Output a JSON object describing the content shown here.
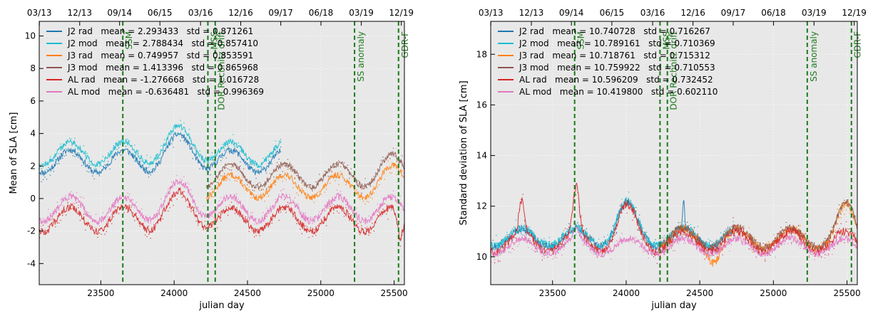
{
  "chart_data": [
    {
      "type": "line",
      "title": "",
      "xlabel": "julian day",
      "ylabel": "Mean of SLA [cm]",
      "xlim": [
        23080,
        25570
      ],
      "ylim": [
        -5.3,
        10.9
      ],
      "x_ticks": [
        23500,
        24000,
        24500,
        25000,
        25500
      ],
      "y_ticks": [
        -4,
        -2,
        0,
        2,
        4,
        6,
        8,
        10
      ],
      "top_ticks": [
        {
          "x": 23081,
          "label": "03/13"
        },
        {
          "x": 23356,
          "label": "12/13"
        },
        {
          "x": 23628,
          "label": "09/14"
        },
        {
          "x": 23903,
          "label": "06/15"
        },
        {
          "x": 24180,
          "label": "03/16"
        },
        {
          "x": 24454,
          "label": "12/16"
        },
        {
          "x": 24727,
          "label": "09/17"
        },
        {
          "x": 25001,
          "label": "06/18"
        },
        {
          "x": 25276,
          "label": "03/19"
        },
        {
          "x": 25549,
          "label": "12/19"
        }
      ],
      "grid": true,
      "legend_position": "upper-left",
      "series": [
        {
          "name": "J2 rad",
          "legend": "J2 rad   mean = 2.293433   std = 0.871261",
          "color": "#1f77b4",
          "x_range": [
            23080,
            24730
          ],
          "mean": 2.293433,
          "std": 0.871261
        },
        {
          "name": "J2 mod",
          "legend": "J2 mod   mean = 2.788434   std = 0.857410",
          "color": "#17becf",
          "x_range": [
            23080,
            24730
          ],
          "mean": 2.788434,
          "std": 0.85741
        },
        {
          "name": "J3 rad",
          "legend": "J3 rad   mean = 0.749957   std = 0.853591",
          "color": "#ff7f0e",
          "x_range": [
            24220,
            25570
          ],
          "mean": 0.749957,
          "std": 0.853591
        },
        {
          "name": "J3 mod",
          "legend": "J3 mod   mean = 1.413396   std = 0.865968",
          "color": "#8c564b",
          "x_range": [
            24220,
            25570
          ],
          "mean": 1.413396,
          "std": 0.865968
        },
        {
          "name": "AL rad",
          "legend": "AL rad   mean = -1.276668   std = 1.016728",
          "color": "#d62728",
          "x_range": [
            23080,
            25570
          ],
          "mean": -1.276668,
          "std": 1.016728
        },
        {
          "name": "AL mod",
          "legend": "AL mod   mean = -0.636481   std = 0.996369",
          "color": "#e377c2",
          "x_range": [
            23080,
            25570
          ],
          "mean": -0.636481,
          "std": 0.996369
        }
      ],
      "annotations": [
        {
          "x": 23650,
          "label": "SSM"
        },
        {
          "x": 24230,
          "label": "MSS"
        },
        {
          "x": 24280,
          "label": "DOR Rechnitz drift"
        },
        {
          "x": 25230,
          "label": "SS anomaly"
        },
        {
          "x": 25530,
          "label": "GDR-F"
        }
      ]
    },
    {
      "type": "line",
      "title": "",
      "xlabel": "julian day",
      "ylabel": "Standard deviation of SLA [cm]",
      "xlim": [
        23080,
        25570
      ],
      "ylim": [
        8.9,
        19.3
      ],
      "x_ticks": [
        23500,
        24000,
        24500,
        25000,
        25500
      ],
      "y_ticks": [
        10,
        12,
        14,
        16,
        18
      ],
      "top_ticks": [
        {
          "x": 23081,
          "label": "03/13"
        },
        {
          "x": 23356,
          "label": "12/13"
        },
        {
          "x": 23628,
          "label": "09/14"
        },
        {
          "x": 23903,
          "label": "06/15"
        },
        {
          "x": 24180,
          "label": "03/16"
        },
        {
          "x": 24454,
          "label": "12/16"
        },
        {
          "x": 24727,
          "label": "09/17"
        },
        {
          "x": 25001,
          "label": "06/18"
        },
        {
          "x": 25276,
          "label": "03/19"
        },
        {
          "x": 25549,
          "label": "12/19"
        }
      ],
      "grid": true,
      "legend_position": "upper-left",
      "series": [
        {
          "name": "J2 rad",
          "legend": "J2 rad   mean = 10.740728   std = 0.716267",
          "color": "#1f77b4",
          "x_range": [
            23080,
            24730
          ],
          "mean": 10.740728,
          "std": 0.716267
        },
        {
          "name": "J2 mod",
          "legend": "J2 mod   mean = 10.789161   std = 0.710369",
          "color": "#17becf",
          "x_range": [
            23080,
            24730
          ],
          "mean": 10.789161,
          "std": 0.710369
        },
        {
          "name": "J3 rad",
          "legend": "J3 rad   mean = 10.718761   std = 0.715312",
          "color": "#ff7f0e",
          "x_range": [
            24220,
            25570
          ],
          "mean": 10.718761,
          "std": 0.715312
        },
        {
          "name": "J3 mod",
          "legend": "J3 mod   mean = 10.759922   std = 0.710553",
          "color": "#8c564b",
          "x_range": [
            24220,
            25570
          ],
          "mean": 10.759922,
          "std": 0.710553
        },
        {
          "name": "AL rad",
          "legend": "AL rad   mean = 10.596209   std = 0.732452",
          "color": "#d62728",
          "x_range": [
            23080,
            25570
          ],
          "mean": 10.596209,
          "std": 0.732452
        },
        {
          "name": "AL mod",
          "legend": "AL mod   mean = 10.419800   std = 0.602110",
          "color": "#e377c2",
          "x_range": [
            23080,
            25570
          ],
          "mean": 10.4198,
          "std": 0.60211
        }
      ],
      "annotations": [
        {
          "x": 23650,
          "label": "SSM"
        },
        {
          "x": 24230,
          "label": "MSS"
        },
        {
          "x": 24280,
          "label": "DOR Rechnitz drift"
        },
        {
          "x": 25230,
          "label": "SS anomaly"
        },
        {
          "x": 25530,
          "label": "GDR-F"
        }
      ]
    }
  ]
}
